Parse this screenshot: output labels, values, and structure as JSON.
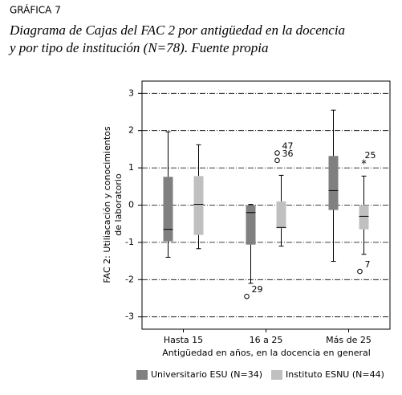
{
  "chart_data": {
    "type": "box",
    "label": "GRÁFICA 7",
    "title": [
      "Diagrama de Cajas del FAC 2 por antigüedad en la docencia",
      "y por tipo de institución (N=78). Fuente propia"
    ],
    "y_label": [
      "FAC 2: Utiliacación y conocimientos",
      "de laboratorio"
    ],
    "x_label": "Antigüedad en años, en la docencia en general",
    "categories": [
      "Hasta 15",
      "16 a 25",
      "Más de 25"
    ],
    "ylim": [
      -3.33,
      3.33
    ],
    "yticks": [
      -3,
      -2,
      -1,
      0,
      1,
      2,
      3
    ],
    "grid": true,
    "series": [
      {
        "name": "Universitario ESU (N=34)",
        "color": "#808080",
        "values": [
          {
            "low": -1.4,
            "q1": -0.97,
            "median": -0.65,
            "q3": 0.76,
            "high": 1.97,
            "outliers": []
          },
          {
            "low": -2.1,
            "q1": -1.06,
            "median": -0.2,
            "q3": 0,
            "high": 0.02,
            "outliers": [
              {
                "value": -2.45,
                "label": "29",
                "marker": "o"
              }
            ]
          },
          {
            "low": -1.51,
            "q1": -0.13,
            "median": 0.39,
            "q3": 1.32,
            "high": 2.55,
            "outliers": []
          }
        ]
      },
      {
        "name": "Instituto ESNU (N=44)",
        "color": "#c0c0c0",
        "values": [
          {
            "low": -1.17,
            "q1": -0.8,
            "median": 0.02,
            "q3": 0.78,
            "high": 1.62,
            "outliers": []
          },
          {
            "low": -1.1,
            "q1": -0.62,
            "median": -0.6,
            "q3": 0.1,
            "high": 0.8,
            "outliers": [
              {
                "value": 1.4,
                "label": "47",
                "marker": "o"
              },
              {
                "value": 1.2,
                "label": "36",
                "marker": "o"
              }
            ]
          },
          {
            "low": -1.32,
            "q1": -0.65,
            "median": -0.3,
            "q3": 0,
            "high": 0.78,
            "outliers": [
              {
                "value": 1.15,
                "label": "25",
                "marker": "*"
              },
              {
                "value": -1.78,
                "label": "7",
                "marker": "o"
              }
            ]
          }
        ]
      }
    ]
  }
}
